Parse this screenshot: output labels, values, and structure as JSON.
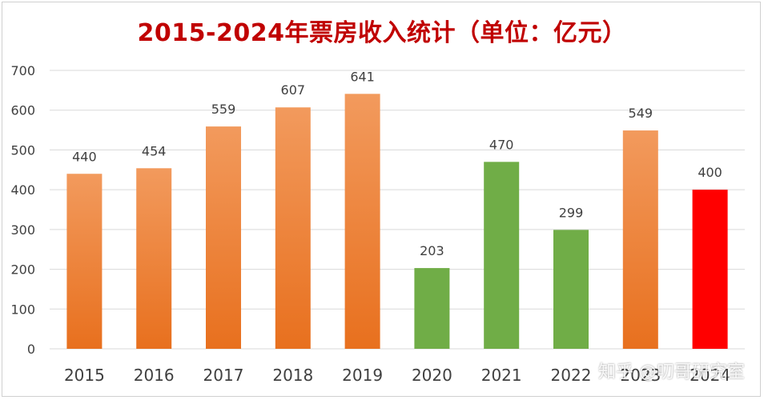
{
  "watermark": "知乎 @叨哥研究室",
  "colors": {
    "orange_top": "#f29a5d",
    "orange_bottom": "#e8701e",
    "green": "#70ad47",
    "red": "#ff0000",
    "title": "#c00000",
    "grid": "#d9d9d9",
    "axis_text": "#404040"
  },
  "chart_data": {
    "type": "bar",
    "title": "2015-2024年票房收入统计（单位：亿元）",
    "xlabel": "",
    "ylabel": "",
    "ylim": [
      0,
      700
    ],
    "yticks": [
      0,
      100,
      200,
      300,
      400,
      500,
      600,
      700
    ],
    "grid": true,
    "categories": [
      "2015",
      "2016",
      "2017",
      "2018",
      "2019",
      "2020",
      "2021",
      "2022",
      "2023",
      "2024"
    ],
    "values": [
      440,
      454,
      559,
      607,
      641,
      203,
      470,
      299,
      549,
      400
    ],
    "bar_colors": [
      "orange",
      "orange",
      "orange",
      "orange",
      "orange",
      "green",
      "green",
      "green",
      "orange",
      "red"
    ],
    "data_labels": [
      "440",
      "454",
      "559",
      "607",
      "641",
      "203",
      "470",
      "299",
      "549",
      "400"
    ]
  }
}
